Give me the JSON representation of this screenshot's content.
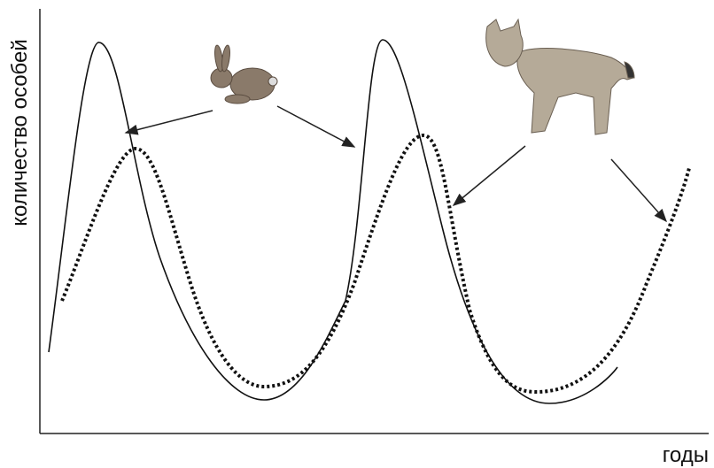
{
  "axes": {
    "y_label": "количество особей",
    "x_label": "годы"
  }
}
